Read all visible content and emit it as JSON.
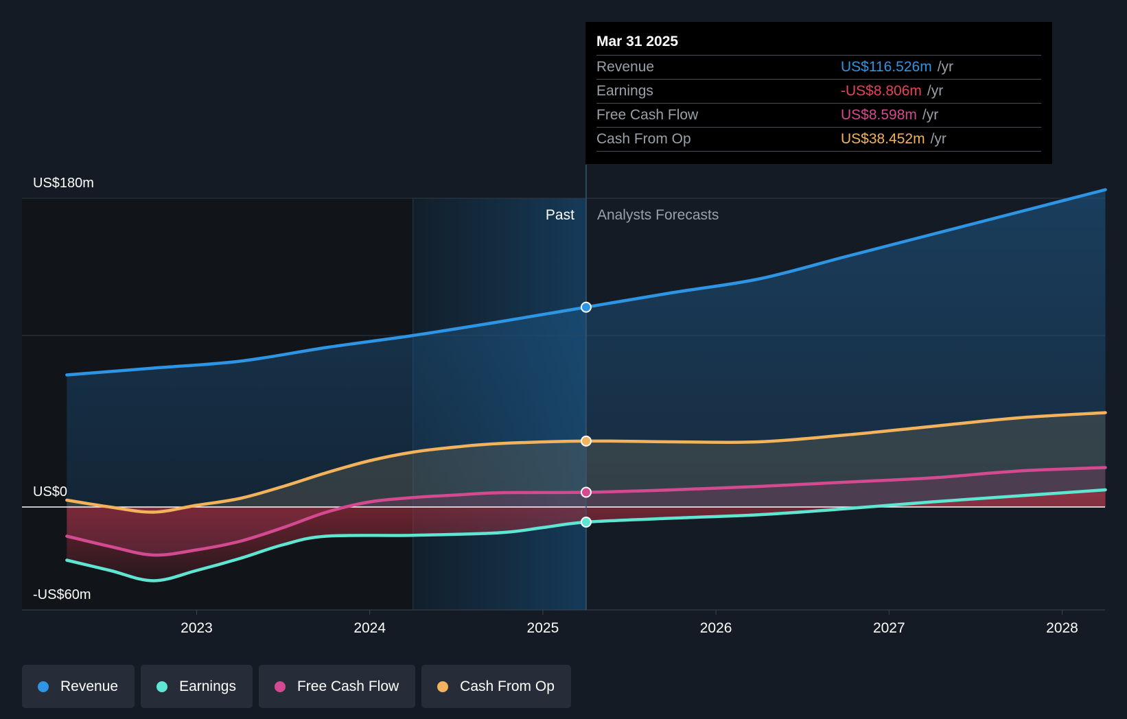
{
  "tooltip": {
    "date": "Mar 31 2025",
    "rows": [
      {
        "label": "Revenue",
        "value": "US$116.526m",
        "unit": "/yr",
        "color": "#2d95e3"
      },
      {
        "label": "Earnings",
        "value": "-US$8.806m",
        "unit": "/yr",
        "color": "#e8415a"
      },
      {
        "label": "Free Cash Flow",
        "value": "US$8.598m",
        "unit": "/yr",
        "color": "#d44a90"
      },
      {
        "label": "Cash From Op",
        "value": "US$38.452m",
        "unit": "/yr",
        "color": "#f2b35c"
      }
    ]
  },
  "labels": {
    "past": "Past",
    "forecast": "Analysts Forecasts"
  },
  "legend": [
    {
      "label": "Revenue",
      "color": "#2d95e3"
    },
    {
      "label": "Earnings",
      "color": "#5ee6d2"
    },
    {
      "label": "Free Cash Flow",
      "color": "#d44a90"
    },
    {
      "label": "Cash From Op",
      "color": "#f2b35c"
    }
  ],
  "chart_data": {
    "type": "line",
    "y_ticks": [
      {
        "value": 180,
        "label": "US$180m"
      },
      {
        "value": 0,
        "label": "US$0"
      },
      {
        "value": -60,
        "label": "-US$60m"
      }
    ],
    "ylim": [
      -60,
      180
    ],
    "x_ticks": [
      {
        "value": 2023,
        "label": "2023"
      },
      {
        "value": 2024,
        "label": "2024"
      },
      {
        "value": 2025,
        "label": "2025"
      },
      {
        "value": 2026,
        "label": "2026"
      },
      {
        "value": 2027,
        "label": "2027"
      },
      {
        "value": 2028,
        "label": "2028"
      }
    ],
    "xlim": [
      2021.75,
      2028.25
    ],
    "past_end": 2025.25,
    "highlight_start": 2024.25,
    "grid": true,
    "series": [
      {
        "name": "Revenue",
        "color": "#2d95e3",
        "points": [
          [
            2022.25,
            77
          ],
          [
            2022.75,
            81
          ],
          [
            2023.25,
            85
          ],
          [
            2023.75,
            93
          ],
          [
            2024.25,
            100
          ],
          [
            2024.75,
            108
          ],
          [
            2025.25,
            116.5
          ],
          [
            2025.75,
            125
          ],
          [
            2026.25,
            133
          ],
          [
            2026.75,
            146
          ],
          [
            2027.25,
            159
          ],
          [
            2027.75,
            172
          ],
          [
            2028.25,
            185
          ]
        ]
      },
      {
        "name": "Earnings",
        "color": "#5ee6d2",
        "points": [
          [
            2022.25,
            -31
          ],
          [
            2022.5,
            -37
          ],
          [
            2022.75,
            -43
          ],
          [
            2023.0,
            -37
          ],
          [
            2023.25,
            -30
          ],
          [
            2023.5,
            -22
          ],
          [
            2023.75,
            -17
          ],
          [
            2024.25,
            -16.5
          ],
          [
            2024.75,
            -15
          ],
          [
            2025.0,
            -12
          ],
          [
            2025.25,
            -8.8
          ],
          [
            2025.75,
            -6.5
          ],
          [
            2026.25,
            -4.5
          ],
          [
            2026.75,
            -1
          ],
          [
            2027.25,
            3
          ],
          [
            2027.75,
            6.5
          ],
          [
            2028.25,
            10
          ]
        ]
      },
      {
        "name": "Free Cash Flow",
        "color": "#d44a90",
        "points": [
          [
            2022.25,
            -17
          ],
          [
            2022.5,
            -23
          ],
          [
            2022.75,
            -28
          ],
          [
            2023.0,
            -25
          ],
          [
            2023.25,
            -20
          ],
          [
            2023.5,
            -12
          ],
          [
            2023.75,
            -3
          ],
          [
            2024.0,
            3
          ],
          [
            2024.25,
            5.5
          ],
          [
            2024.5,
            7
          ],
          [
            2024.75,
            8.3
          ],
          [
            2025.25,
            8.6
          ],
          [
            2025.75,
            10
          ],
          [
            2026.25,
            12
          ],
          [
            2026.75,
            14.5
          ],
          [
            2027.25,
            17
          ],
          [
            2027.75,
            21
          ],
          [
            2028.25,
            23
          ]
        ]
      },
      {
        "name": "Cash From Op",
        "color": "#f2b35c",
        "points": [
          [
            2022.25,
            4
          ],
          [
            2022.5,
            0
          ],
          [
            2022.75,
            -3
          ],
          [
            2023.0,
            1
          ],
          [
            2023.25,
            5
          ],
          [
            2023.5,
            12
          ],
          [
            2023.75,
            20
          ],
          [
            2024.0,
            27
          ],
          [
            2024.25,
            32
          ],
          [
            2024.5,
            35
          ],
          [
            2024.75,
            37
          ],
          [
            2025.25,
            38.45
          ],
          [
            2025.75,
            38
          ],
          [
            2026.25,
            38
          ],
          [
            2026.75,
            42
          ],
          [
            2027.25,
            47
          ],
          [
            2027.75,
            52
          ],
          [
            2028.25,
            55
          ]
        ]
      }
    ]
  }
}
